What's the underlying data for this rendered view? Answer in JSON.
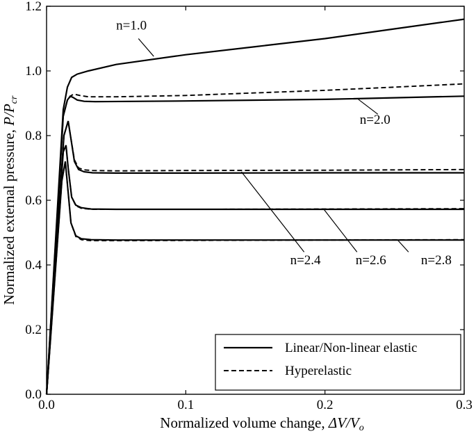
{
  "chart_data": {
    "type": "line",
    "xlabel_text": "Normalized volume change, ",
    "xlabel_math": "ΔV/V",
    "xlabel_sub": "o",
    "ylabel_text": "Normalized external pressure, ",
    "ylabel_math": "P/P",
    "ylabel_sub": "cr",
    "xlim": [
      0,
      0.3
    ],
    "ylim": [
      0,
      1.2
    ],
    "xticks": [
      0,
      0.1,
      0.2,
      0.3
    ],
    "xtick_labels": [
      "0.0",
      "0.1",
      "0.2",
      "0.3"
    ],
    "yticks": [
      0,
      0.2,
      0.4,
      0.6,
      0.8,
      1.0,
      1.2
    ],
    "ytick_labels": [
      "0.0",
      "0.2",
      "0.4",
      "0.6",
      "0.8",
      "1.0",
      "1.2"
    ],
    "grid": false,
    "legend": {
      "position": "bottom-right",
      "entries": [
        {
          "label": "Linear/Non-linear elastic",
          "style": "solid"
        },
        {
          "label": "Hyperelastic",
          "style": "dashed"
        }
      ]
    },
    "series": [
      {
        "group": "n=1.0",
        "style": "solid",
        "x": [
          0,
          0.012,
          0.015,
          0.018,
          0.022,
          0.03,
          0.05,
          0.1,
          0.15,
          0.2,
          0.25,
          0.3
        ],
        "y": [
          0,
          0.88,
          0.95,
          0.98,
          0.99,
          1.0,
          1.02,
          1.05,
          1.075,
          1.1,
          1.13,
          1.16
        ]
      },
      {
        "group": "n=2.0",
        "style": "solid",
        "x": [
          0,
          0.012,
          0.015,
          0.017,
          0.019,
          0.022,
          0.027,
          0.035,
          0.1,
          0.2,
          0.3
        ],
        "y": [
          0,
          0.86,
          0.91,
          0.922,
          0.918,
          0.91,
          0.906,
          0.905,
          0.907,
          0.912,
          0.922
        ]
      },
      {
        "group": "n=2.0",
        "style": "dashed",
        "x": [
          0,
          0.012,
          0.015,
          0.018,
          0.02,
          0.024,
          0.03,
          0.05,
          0.1,
          0.15,
          0.2,
          0.25,
          0.3
        ],
        "y": [
          0,
          0.86,
          0.91,
          0.925,
          0.928,
          0.924,
          0.92,
          0.92,
          0.924,
          0.932,
          0.94,
          0.95,
          0.96
        ]
      },
      {
        "group": "n=2.4",
        "style": "solid",
        "x": [
          0,
          0.0125,
          0.0155,
          0.0175,
          0.02,
          0.023,
          0.027,
          0.033,
          0.05,
          0.1,
          0.2,
          0.3
        ],
        "y": [
          0,
          0.8,
          0.845,
          0.79,
          0.72,
          0.695,
          0.688,
          0.685,
          0.684,
          0.684,
          0.685,
          0.685
        ]
      },
      {
        "group": "n=2.4",
        "style": "dashed",
        "x": [
          0,
          0.0125,
          0.0155,
          0.0175,
          0.02,
          0.023,
          0.027,
          0.033,
          0.05,
          0.1,
          0.2,
          0.3
        ],
        "y": [
          0,
          0.8,
          0.845,
          0.79,
          0.725,
          0.7,
          0.694,
          0.692,
          0.691,
          0.692,
          0.693,
          0.695
        ]
      },
      {
        "group": "n=2.6",
        "style": "solid",
        "x": [
          0,
          0.012,
          0.014,
          0.0155,
          0.018,
          0.021,
          0.025,
          0.032,
          0.05,
          0.1,
          0.2,
          0.3
        ],
        "y": [
          0,
          0.75,
          0.77,
          0.7,
          0.61,
          0.585,
          0.577,
          0.573,
          0.572,
          0.572,
          0.572,
          0.572
        ]
      },
      {
        "group": "n=2.6",
        "style": "dashed",
        "x": [
          0,
          0.012,
          0.014,
          0.0155,
          0.018,
          0.021,
          0.025,
          0.032,
          0.05,
          0.1,
          0.2,
          0.3
        ],
        "y": [
          0,
          0.75,
          0.77,
          0.7,
          0.61,
          0.583,
          0.575,
          0.572,
          0.572,
          0.572,
          0.573,
          0.574
        ]
      },
      {
        "group": "n=2.8",
        "style": "solid",
        "x": [
          0,
          0.011,
          0.0135,
          0.015,
          0.0175,
          0.021,
          0.025,
          0.032,
          0.05,
          0.1,
          0.2,
          0.3
        ],
        "y": [
          0,
          0.66,
          0.72,
          0.65,
          0.53,
          0.49,
          0.481,
          0.478,
          0.477,
          0.477,
          0.477,
          0.477
        ]
      },
      {
        "group": "n=2.8",
        "style": "dashed",
        "x": [
          0,
          0.011,
          0.0135,
          0.015,
          0.0175,
          0.021,
          0.025,
          0.032,
          0.05,
          0.1,
          0.2,
          0.3
        ],
        "y": [
          0,
          0.66,
          0.72,
          0.65,
          0.53,
          0.488,
          0.478,
          0.475,
          0.475,
          0.476,
          0.477,
          0.478
        ]
      }
    ],
    "annotations": [
      {
        "text": "n=1.0",
        "label_at": [
          0.05,
          1.128
        ],
        "anchor_label": [
          0.066,
          1.1
        ],
        "anchor_curve": [
          0.077,
          1.045
        ]
      },
      {
        "text": "n=2.0",
        "label_at": [
          0.225,
          0.837
        ],
        "anchor_label": [
          0.238,
          0.866
        ],
        "anchor_curve": [
          0.224,
          0.912
        ]
      },
      {
        "text": "n=2.4",
        "label_at": [
          0.175,
          0.402
        ],
        "anchor_label": [
          0.185,
          0.44
        ],
        "anchor_curve": [
          0.14,
          0.688
        ]
      },
      {
        "text": "n=2.6",
        "label_at": [
          0.222,
          0.402
        ],
        "anchor_label": [
          0.223,
          0.44
        ],
        "anchor_curve": [
          0.199,
          0.573
        ]
      },
      {
        "text": "n=2.8",
        "label_at": [
          0.269,
          0.402
        ],
        "anchor_label": [
          0.26,
          0.44
        ],
        "anchor_curve": [
          0.252,
          0.478
        ]
      }
    ]
  }
}
